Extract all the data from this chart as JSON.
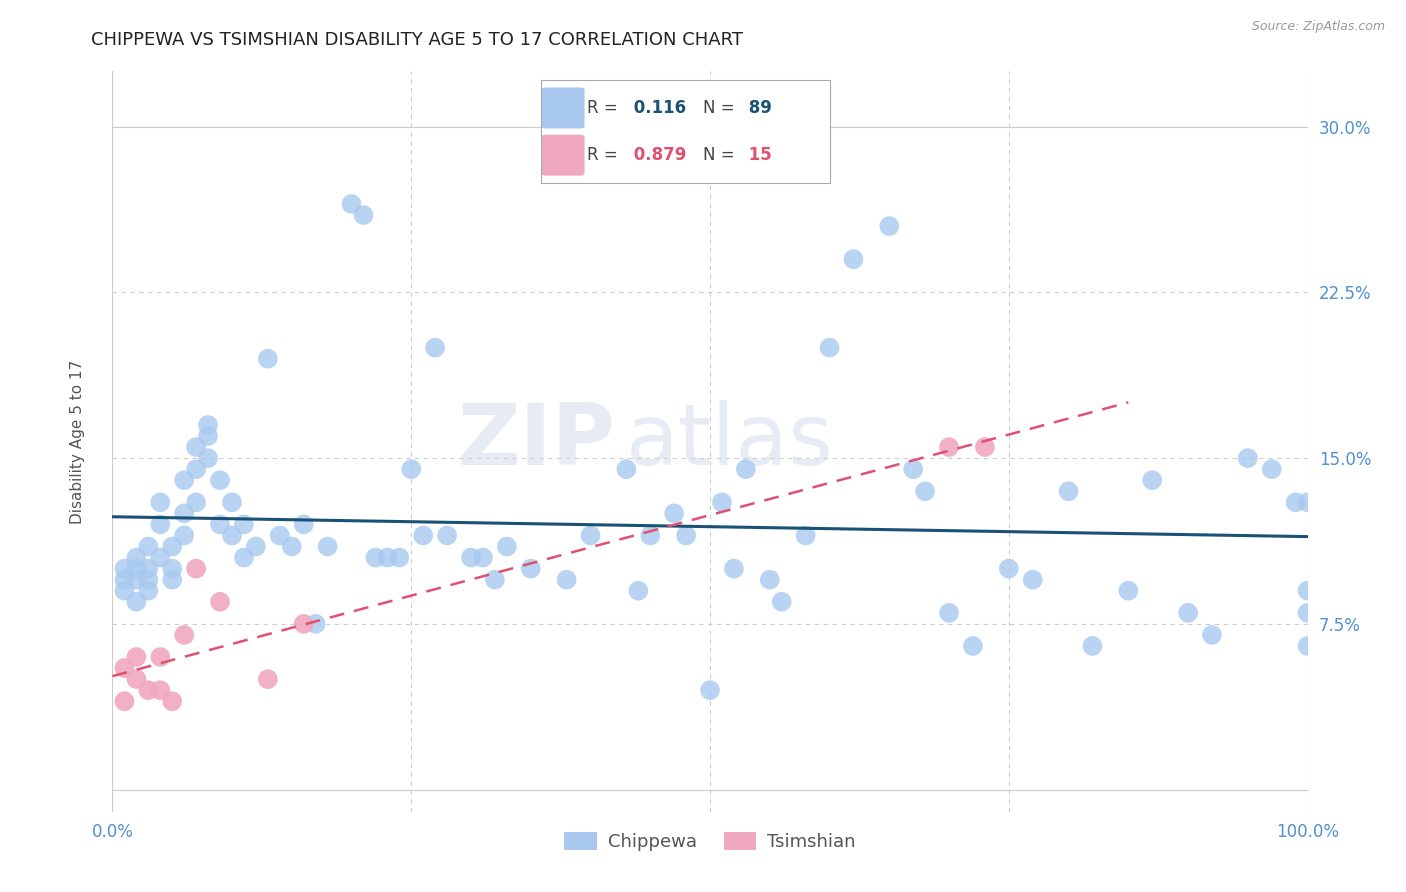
{
  "title": "CHIPPEWA VS TSIMSHIAN DISABILITY AGE 5 TO 17 CORRELATION CHART",
  "source": "Source: ZipAtlas.com",
  "ylabel": "Disability Age 5 to 17",
  "xlim": [
    0.0,
    1.0
  ],
  "ylim": [
    -0.01,
    0.325
  ],
  "plot_ylim": [
    0.0,
    0.3
  ],
  "xticks": [
    0.0,
    0.25,
    0.5,
    0.75,
    1.0
  ],
  "xticklabels": [
    "0.0%",
    "",
    "",
    "",
    "100.0%"
  ],
  "yticks": [
    0.075,
    0.15,
    0.225,
    0.3
  ],
  "yticklabels": [
    "7.5%",
    "15.0%",
    "22.5%",
    "30.0%"
  ],
  "chippewa_R": 0.116,
  "chippewa_N": 89,
  "tsimshian_R": 0.879,
  "tsimshian_N": 15,
  "chippewa_color": "#a8c8f0",
  "tsimshian_color": "#f0a8c0",
  "chippewa_line_color": "#1a5276",
  "tsimshian_line_color": "#e05070",
  "background_color": "#ffffff",
  "grid_color": "#cccccc",
  "watermark": "ZIPatlas",
  "chippewa_x": [
    0.01,
    0.01,
    0.01,
    0.02,
    0.02,
    0.02,
    0.02,
    0.03,
    0.03,
    0.03,
    0.03,
    0.04,
    0.04,
    0.04,
    0.05,
    0.05,
    0.05,
    0.06,
    0.06,
    0.06,
    0.07,
    0.07,
    0.07,
    0.08,
    0.08,
    0.08,
    0.09,
    0.09,
    0.1,
    0.1,
    0.11,
    0.11,
    0.12,
    0.13,
    0.14,
    0.15,
    0.16,
    0.17,
    0.18,
    0.2,
    0.21,
    0.22,
    0.23,
    0.24,
    0.25,
    0.26,
    0.27,
    0.28,
    0.3,
    0.31,
    0.32,
    0.33,
    0.35,
    0.38,
    0.4,
    0.43,
    0.44,
    0.45,
    0.47,
    0.48,
    0.5,
    0.51,
    0.52,
    0.53,
    0.55,
    0.56,
    0.58,
    0.6,
    0.62,
    0.65,
    0.67,
    0.68,
    0.7,
    0.72,
    0.75,
    0.77,
    0.8,
    0.82,
    0.85,
    0.87,
    0.9,
    0.92,
    0.95,
    0.97,
    0.99,
    1.0,
    1.0,
    1.0,
    1.0
  ],
  "chippewa_y": [
    0.095,
    0.09,
    0.1,
    0.085,
    0.095,
    0.1,
    0.105,
    0.09,
    0.095,
    0.1,
    0.11,
    0.12,
    0.13,
    0.105,
    0.095,
    0.11,
    0.1,
    0.125,
    0.115,
    0.14,
    0.155,
    0.145,
    0.13,
    0.16,
    0.15,
    0.165,
    0.14,
    0.12,
    0.13,
    0.115,
    0.12,
    0.105,
    0.11,
    0.195,
    0.115,
    0.11,
    0.12,
    0.075,
    0.11,
    0.265,
    0.26,
    0.105,
    0.105,
    0.105,
    0.145,
    0.115,
    0.2,
    0.115,
    0.105,
    0.105,
    0.095,
    0.11,
    0.1,
    0.095,
    0.115,
    0.145,
    0.09,
    0.115,
    0.125,
    0.115,
    0.045,
    0.13,
    0.1,
    0.145,
    0.095,
    0.085,
    0.115,
    0.2,
    0.24,
    0.255,
    0.145,
    0.135,
    0.08,
    0.065,
    0.1,
    0.095,
    0.135,
    0.065,
    0.09,
    0.14,
    0.08,
    0.07,
    0.15,
    0.145,
    0.13,
    0.065,
    0.09,
    0.08,
    0.13
  ],
  "tsimshian_x": [
    0.01,
    0.01,
    0.02,
    0.02,
    0.03,
    0.04,
    0.04,
    0.05,
    0.06,
    0.07,
    0.09,
    0.13,
    0.16,
    0.7,
    0.73
  ],
  "tsimshian_y": [
    0.04,
    0.055,
    0.05,
    0.06,
    0.045,
    0.045,
    0.06,
    0.04,
    0.07,
    0.1,
    0.085,
    0.05,
    0.075,
    0.155,
    0.155
  ]
}
